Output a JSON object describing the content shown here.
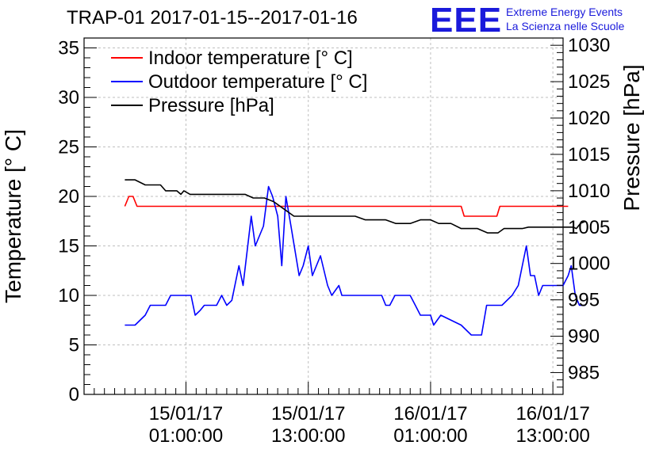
{
  "header": {
    "title": "TRAP-01 2017-01-15--2017-01-16",
    "logo": "EEE",
    "logo_line1": "Extreme Energy Events",
    "logo_line2": "La Scienza nelle Scuole"
  },
  "chart_data": {
    "type": "line",
    "ylabel_left": "Temperature [° C]",
    "ylabel_right": "Pressure [hPa]",
    "xlabel": "",
    "ylim_left": [
      0,
      36
    ],
    "ylim_right": [
      982,
      1031
    ],
    "xlim_hours": [
      -10,
      37
    ],
    "left_ticks": [
      0,
      5,
      10,
      15,
      20,
      25,
      30,
      35
    ],
    "right_ticks": [
      985,
      990,
      995,
      1000,
      1005,
      1010,
      1015,
      1020,
      1025,
      1030
    ],
    "x_ticks": [
      {
        "hour": 0,
        "line1": "15/01/17",
        "line2": "01:00:00"
      },
      {
        "hour": 12,
        "line1": "15/01/17",
        "line2": "13:00:00"
      },
      {
        "hour": 24,
        "line1": "16/01/17",
        "line2": "01:00:00"
      },
      {
        "hour": 36,
        "line1": "16/01/17",
        "line2": "13:00:00"
      }
    ],
    "grid": true,
    "legend_position": "top-left",
    "series": [
      {
        "name": "Indoor temperature [° C]",
        "color": "#ff0000",
        "axis": "left",
        "points": [
          [
            -6,
            19
          ],
          [
            -5.6,
            20
          ],
          [
            -5.2,
            20
          ],
          [
            -4.8,
            19
          ],
          [
            -2,
            19
          ],
          [
            0,
            19
          ],
          [
            4,
            19
          ],
          [
            8,
            19
          ],
          [
            12,
            19
          ],
          [
            16,
            19
          ],
          [
            20,
            19
          ],
          [
            24,
            19
          ],
          [
            27,
            19
          ],
          [
            27.3,
            18
          ],
          [
            29,
            18
          ],
          [
            30.5,
            18
          ],
          [
            30.8,
            19
          ],
          [
            33,
            19
          ],
          [
            36,
            19
          ],
          [
            37.5,
            19
          ]
        ]
      },
      {
        "name": "Outdoor temperature [° C]",
        "color": "#0000ff",
        "axis": "left",
        "points": [
          [
            -6,
            7
          ],
          [
            -5,
            7
          ],
          [
            -4,
            8
          ],
          [
            -3.5,
            9
          ],
          [
            -2,
            9
          ],
          [
            -1.5,
            10
          ],
          [
            0.5,
            10
          ],
          [
            0.9,
            8
          ],
          [
            1.4,
            8.5
          ],
          [
            1.8,
            9
          ],
          [
            3,
            9
          ],
          [
            3.5,
            10
          ],
          [
            4,
            9
          ],
          [
            4.5,
            9.5
          ],
          [
            5.2,
            13
          ],
          [
            5.6,
            11
          ],
          [
            6.4,
            18
          ],
          [
            6.8,
            15
          ],
          [
            7.6,
            17
          ],
          [
            8.1,
            21
          ],
          [
            8.5,
            20
          ],
          [
            9,
            18
          ],
          [
            9.4,
            13
          ],
          [
            9.8,
            20
          ],
          [
            10.3,
            17
          ],
          [
            11.1,
            12
          ],
          [
            11.5,
            13
          ],
          [
            12,
            15
          ],
          [
            12.4,
            12
          ],
          [
            13.2,
            14
          ],
          [
            13.9,
            11
          ],
          [
            14.3,
            10
          ],
          [
            15,
            11
          ],
          [
            15.3,
            10
          ],
          [
            16,
            10
          ],
          [
            18,
            10
          ],
          [
            19.2,
            10
          ],
          [
            19.6,
            9
          ],
          [
            20,
            9
          ],
          [
            20.5,
            10
          ],
          [
            22,
            10
          ],
          [
            22.5,
            9
          ],
          [
            23,
            8
          ],
          [
            24,
            8
          ],
          [
            24.3,
            7
          ],
          [
            25,
            8
          ],
          [
            27,
            7
          ],
          [
            28,
            6
          ],
          [
            29,
            6
          ],
          [
            29.5,
            9
          ],
          [
            31,
            9
          ],
          [
            32,
            10
          ],
          [
            32.6,
            11
          ],
          [
            33.4,
            15
          ],
          [
            33.8,
            12
          ],
          [
            34.2,
            12
          ],
          [
            34.6,
            10
          ],
          [
            35,
            11
          ],
          [
            37,
            11
          ],
          [
            37.5,
            12
          ],
          [
            37.8,
            13
          ],
          [
            38.2,
            10
          ],
          [
            38.6,
            9
          ],
          [
            39.2,
            9
          ]
        ]
      },
      {
        "name": "Pressure [hPa]",
        "color": "#000000",
        "axis": "right",
        "points": [
          [
            -6,
            1011.5
          ],
          [
            -5,
            1011.5
          ],
          [
            -4,
            1010.8
          ],
          [
            -2.5,
            1010.8
          ],
          [
            -2,
            1010
          ],
          [
            -0.9,
            1010
          ],
          [
            -0.5,
            1009.5
          ],
          [
            -0.2,
            1010
          ],
          [
            0.4,
            1009.5
          ],
          [
            0.9,
            1009.5
          ],
          [
            3,
            1009.5
          ],
          [
            4,
            1009.5
          ],
          [
            5.8,
            1009.5
          ],
          [
            6.6,
            1009
          ],
          [
            7.7,
            1009
          ],
          [
            8.6,
            1008.5
          ],
          [
            9.6,
            1007.5
          ],
          [
            10.6,
            1006.5
          ],
          [
            11.5,
            1006.5
          ],
          [
            12.5,
            1006.5
          ],
          [
            14.6,
            1006.5
          ],
          [
            16.6,
            1006.5
          ],
          [
            17.6,
            1006
          ],
          [
            19.6,
            1006
          ],
          [
            20.6,
            1005.5
          ],
          [
            22,
            1005.5
          ],
          [
            23,
            1006
          ],
          [
            24,
            1006
          ],
          [
            24.8,
            1005.5
          ],
          [
            26,
            1005.5
          ],
          [
            27,
            1004.8
          ],
          [
            28.6,
            1004.8
          ],
          [
            29.6,
            1004.2
          ],
          [
            30.6,
            1004.2
          ],
          [
            31.2,
            1004.8
          ],
          [
            33,
            1004.8
          ],
          [
            33.6,
            1005
          ],
          [
            35,
            1005
          ],
          [
            37,
            1005
          ],
          [
            38,
            1005
          ],
          [
            38.3,
            1004.8
          ],
          [
            38.7,
            1005.5
          ],
          [
            39.2,
            1005.8
          ]
        ]
      }
    ]
  }
}
